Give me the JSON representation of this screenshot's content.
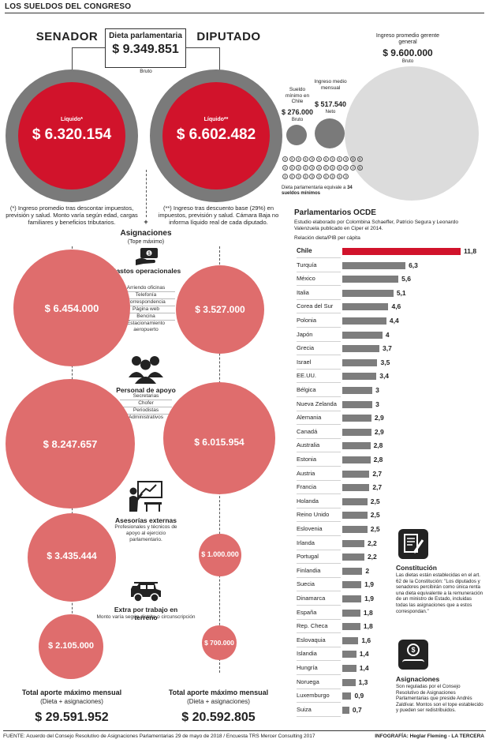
{
  "header": {
    "title": "LOS SUELDOS DEL CONGRESO"
  },
  "senador": {
    "title": "SENADOR",
    "liquido_label": "Líquido*",
    "liquido_value": "$ 6.320.154",
    "note": "(*) Ingreso promedio tras descontar impuestos, previsión y salud. Monto varía según edad, cargas familiares y beneficios tributarios."
  },
  "diputado": {
    "title": "DIPUTADO",
    "liquido_label": "Líquido**",
    "liquido_value": "$ 6.602.482",
    "note": "(**) Ingreso tras descuento base (29%) en impuestos, previsión y salud. Cámara Baja no informa líquido real de cada diputado."
  },
  "dieta": {
    "title": "Dieta parlamentaria",
    "value": "$ 9.349.851",
    "sub": "Bruto"
  },
  "comparisons": {
    "gerente_label": "Ingreso promedio gerente general",
    "gerente_value": "$ 9.600.000",
    "gerente_sub": "Bruto",
    "minimo_label": "Sueldo mínimo en Chile",
    "minimo_value": "$ 276.000",
    "minimo_sub": "Bruto",
    "medio_label": "Ingreso medio mensual",
    "medio_value": "$ 517.540",
    "medio_sub": "Neto",
    "equiv_text": "Dieta parlamentaria equivale a",
    "equiv_bold": "34 sueldos mínimos",
    "mini_glyph": "$"
  },
  "asignaciones": {
    "title": "Asignaciones",
    "subtitle": "(Tope máximo)",
    "plus": "+",
    "items": [
      {
        "title": "Gastos operacionales",
        "subs": [
          "Arriendo oficinas",
          "Telefonía",
          "Correspondencia",
          "Página web",
          "Bencina",
          "Estacionamiento aeropuerto"
        ],
        "senador": "$ 6.454.000",
        "diputado": "$ 3.527.000"
      },
      {
        "title": "Personal de apoyo",
        "subs": [
          "Secretarias",
          "Chofer",
          "Periodistas",
          "Administrativos"
        ],
        "senador": "$ 8.247.657",
        "diputado": "$ 6.015.954"
      },
      {
        "title": "Asesorías externas",
        "subs": [
          "Profesionales y técnicos de apoyo al ejercicio parlamentario."
        ],
        "senador": "$ 3.435.444",
        "diputado": "$ 1.000.000"
      },
      {
        "title": "Extra por trabajo en terreno",
        "subs": [
          "Monto varía según distrito o circunscripción"
        ],
        "senador": "$ 2.105.000",
        "diputado": "$ 700.000"
      }
    ]
  },
  "totals": {
    "senador_title": "Total aporte máximo mensual",
    "senador_sub": "(Dieta + asignaciones)",
    "senador_value": "$ 29.591.952",
    "diputado_title": "Total aporte máximo mensual",
    "diputado_sub": "(Dieta + asignaciones)",
    "diputado_value": "$ 20.592.805"
  },
  "ocde": {
    "title": "Parlamentarios OCDE",
    "desc": "Estudio elaborado por Colombina Schaeffer, Patricio Segura y Leonardo Valenzuela publicado en Ciper el 2014.",
    "axis_label": "Relación dieta/PIB per cápita"
  },
  "chart_data": {
    "type": "bar",
    "orientation": "horizontal",
    "title": "Parlamentarios OCDE",
    "xlabel": "Relación dieta/PIB per cápita",
    "categories": [
      "Chile",
      "Turquía",
      "México",
      "Italia",
      "Corea del Sur",
      "Polonia",
      "Japón",
      "Grecia",
      "Israel",
      "EE.UU.",
      "Bélgica",
      "Nueva Zelanda",
      "Alemania",
      "Canadá",
      "Australia",
      "Estonia",
      "Austria",
      "Francia",
      "Holanda",
      "Reino Unido",
      "Eslovenia",
      "Irlanda",
      "Portugal",
      "Finlandia",
      "Suecia",
      "Dinamarca",
      "España",
      "Rep. Checa",
      "Eslovaquia",
      "Islandia",
      "Hungría",
      "Noruega",
      "Luxemburgo",
      "Suiza"
    ],
    "values": [
      11.8,
      6.3,
      5.6,
      5.1,
      4.6,
      4.4,
      4,
      3.7,
      3.5,
      3.4,
      3,
      3,
      2.9,
      2.9,
      2.8,
      2.8,
      2.7,
      2.7,
      2.5,
      2.5,
      2.5,
      2.2,
      2.2,
      2,
      1.9,
      1.9,
      1.8,
      1.8,
      1.6,
      1.4,
      1.4,
      1.3,
      0.9,
      0.7
    ],
    "value_labels": [
      "11,8",
      "6,3",
      "5,6",
      "5,1",
      "4,6",
      "4,4",
      "4",
      "3,7",
      "3,5",
      "3,4",
      "3",
      "3",
      "2,9",
      "2,9",
      "2,8",
      "2,8",
      "2,7",
      "2,7",
      "2,5",
      "2,5",
      "2,5",
      "2,2",
      "2,2",
      "2",
      "1,9",
      "1,9",
      "1,8",
      "1,8",
      "1,6",
      "1,4",
      "1,4",
      "1,3",
      "0,9",
      "0,7"
    ],
    "highlight": "Chile",
    "colors": {
      "highlight": "#d1132b",
      "default": "#7d7d7d"
    },
    "xlim": [
      0,
      11.8
    ]
  },
  "constitucion": {
    "title": "Constitución",
    "text": "Las dietas están establecidas en el art. 62 de la Constitución: \"Los diputados y senadores percibirán como única renta una dieta equivalente a la remuneración de un ministro de Estado, incluidas todas las asignaciones que a estos correspondan.\""
  },
  "asignaciones_note": {
    "title": "Asignaciones",
    "text": "Son reguladas por el Consejo Resolutivo de Asignaciones Parlamentarias que preside Andrés Zaldívar. Montos son el tope establecido y pueden ser redistribuidos.",
    "icon_glyph": "$"
  },
  "footer": {
    "source": "FUENTE: Acuerdo del Consejo Resolutivo de Asignaciones Parlamentarias 29 de mayo de 2018 / Encuesta TRS Mercer Consulting 2017",
    "credit": "INFOGRAFÍA: Heglar Fleming - LA TERCERA"
  },
  "icons": [
    "money-hand-icon",
    "people-icon",
    "presentation-icon",
    "jeep-icon",
    "document-pen-icon",
    "money-hand-icon"
  ],
  "palette": {
    "red": "#d1132b",
    "salmon": "#df6d6d",
    "gray": "#7a7a7a",
    "light_gray": "#dcdcdc"
  }
}
